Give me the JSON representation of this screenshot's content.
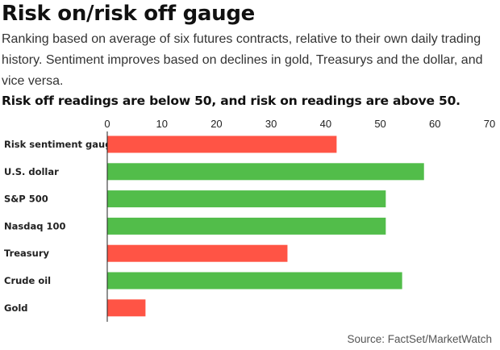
{
  "header": {
    "title": "Risk on/risk off gauge",
    "subtitle": "Ranking based on average of six futures contracts, relative to their own daily trading history. Sentiment improves based on declines in gold, Treasurys and the dollar, and vice versa.",
    "note": "Risk off readings are below 50, and risk on readings are above 50."
  },
  "footer": {
    "source": "Source: FactSet/MarketWatch"
  },
  "colors": {
    "risk_off": "#ff5445",
    "risk_on": "#52bd4a"
  },
  "chart_data": {
    "type": "bar",
    "orientation": "horizontal",
    "categories": [
      "Risk sentiment gauge",
      "U.S. dollar",
      "S&P 500",
      "Nasdaq 100",
      "Treasury",
      "Crude oil",
      "Gold"
    ],
    "values": [
      42,
      58,
      51,
      51,
      33,
      54,
      7
    ],
    "bar_colors": [
      "#ff5445",
      "#52bd4a",
      "#52bd4a",
      "#52bd4a",
      "#ff5445",
      "#52bd4a",
      "#ff5445"
    ],
    "xlim": [
      0,
      70
    ],
    "xticks": [
      0,
      10,
      20,
      30,
      40,
      50,
      60,
      70
    ],
    "xaxis_position": "top",
    "grid": false
  }
}
